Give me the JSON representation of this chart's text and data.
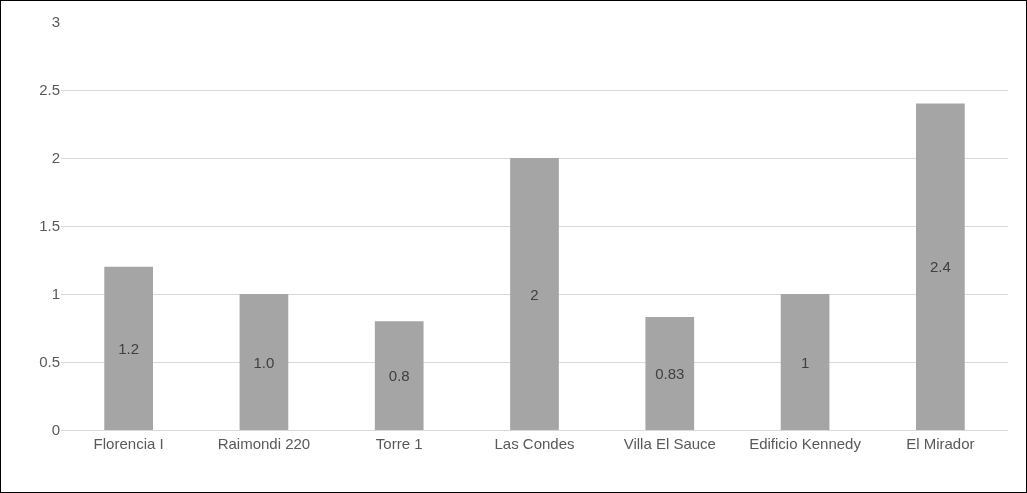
{
  "chart_data": {
    "type": "bar",
    "categories": [
      "Florencia I",
      "Raimondi 220",
      "Torre 1",
      "Las Condes",
      "Villa El Sauce",
      "Edificio Kennedy",
      "El Mirador"
    ],
    "values": [
      1.2,
      1.0,
      0.8,
      2,
      0.83,
      1,
      2.4
    ],
    "value_labels": [
      "1.2",
      "1.0",
      "0.8",
      "2",
      "0.83",
      "1",
      "2.4"
    ],
    "color": "#a5a5a5",
    "ylim": [
      0,
      3
    ],
    "yticks": [
      0,
      0.5,
      1,
      1.5,
      2,
      2.5,
      3
    ],
    "grid": "y"
  }
}
